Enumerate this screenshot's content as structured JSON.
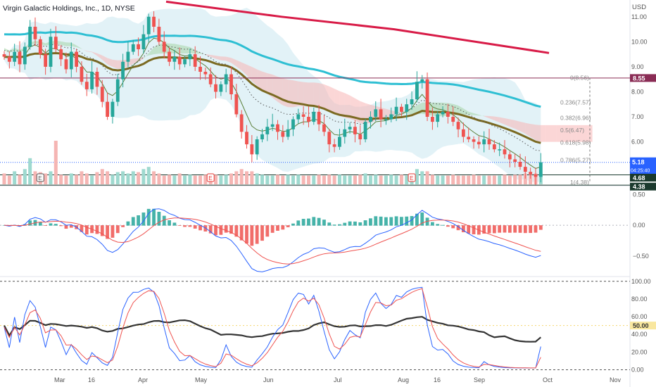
{
  "header": {
    "title": "Virgin Galactic Holdings, Inc., 1D, NYSE",
    "currency": "USD"
  },
  "colors": {
    "up": "#26a69a",
    "down": "#ef5350",
    "cloud_bear": "#f7b4b4",
    "cloud_bull": "#a5d6a7",
    "bb_fill": "#dbeff5",
    "ma_fast": "#2ebfd3",
    "ma_mid": "#7b6a22",
    "ma_slow": "#d81b47",
    "macd": "#2962ff",
    "signal": "#ef5350",
    "rsi": "#333333",
    "fib": "#888888",
    "hline": "#8a2c55"
  },
  "chart_data": [
    {
      "type": "candlestick",
      "panel": "price",
      "price_axis": {
        "ticks": [
          11.0,
          10.0,
          9.0,
          8.0,
          7.0,
          6.0,
          5.0
        ],
        "ylim": [
          4.3,
          11.5
        ]
      },
      "time_axis": {
        "labels": [
          "Mar",
          "16",
          "Apr",
          "May",
          "Jun",
          "Jul",
          "Aug",
          "16",
          "Sep",
          "Oct",
          "Nov"
        ]
      },
      "labels": {
        "horizontal_line": {
          "value": 8.55,
          "label": "8.55"
        },
        "last_price": {
          "value": 5.18,
          "label": "5.18",
          "countdown": "04:25:40"
        },
        "level_a": {
          "value": 4.68,
          "label": "4.68"
        },
        "level_b": {
          "value": 4.38,
          "label": "4.38"
        }
      },
      "fibonacci": [
        {
          "ratio": "0",
          "value": 8.56,
          "label": "0(8.56)"
        },
        {
          "ratio": "0.236",
          "value": 7.57,
          "label": "0.236(7.57)"
        },
        {
          "ratio": "0.382",
          "value": 6.96,
          "label": "0.382(6.96)"
        },
        {
          "ratio": "0.5",
          "value": 6.47,
          "label": "0.5(6.47)"
        },
        {
          "ratio": "0.618",
          "value": 5.98,
          "label": "0.618(5.98)"
        },
        {
          "ratio": "0.786",
          "value": 5.27,
          "label": "0.786(5.27)"
        },
        {
          "ratio": "1",
          "value": 4.38,
          "label": "1(4.38)"
        }
      ],
      "earnings_markers": [
        {
          "label": "E",
          "type": "earnings-past"
        },
        {
          "label": "E",
          "type": "earnings-past"
        },
        {
          "label": "E",
          "type": "earnings-past"
        }
      ],
      "close_series": [
        9.4,
        9.2,
        9.6,
        9.1,
        9.8,
        10.6,
        10.1,
        9.5,
        9.0,
        10.2,
        9.7,
        9.3,
        8.9,
        9.6,
        9.0,
        8.4,
        8.1,
        8.8,
        8.2,
        7.6,
        7.0,
        7.6,
        8.5,
        9.2,
        9.6,
        9.9,
        9.7,
        10.3,
        11.0,
        10.6,
        10.0,
        9.6,
        9.2,
        9.4,
        9.1,
        9.3,
        9.5,
        9.0,
        8.8,
        8.7,
        8.3,
        8.0,
        8.3,
        8.7,
        7.9,
        7.1,
        6.4,
        5.9,
        5.5,
        6.1,
        6.3,
        6.6,
        6.7,
        6.4,
        6.2,
        6.5,
        6.9,
        7.1,
        7.0,
        6.8,
        7.2,
        6.7,
        6.4,
        5.9,
        5.8,
        6.2,
        6.5,
        6.6,
        6.3,
        6.1,
        6.8,
        7.0,
        7.3,
        6.9,
        6.9,
        7.1,
        7.4,
        7.2,
        7.5,
        7.7,
        8.4,
        8.5,
        7.0,
        6.8,
        7.1,
        7.2,
        7.0,
        6.8,
        6.5,
        6.2,
        6.1,
        6.0,
        5.9,
        6.1,
        5.9,
        5.7,
        5.7,
        5.5,
        5.3,
        5.2,
        5.0,
        4.8,
        4.7,
        4.6,
        5.18
      ],
      "volume_series": [
        0.25,
        0.2,
        0.3,
        0.22,
        0.35,
        0.6,
        0.3,
        0.28,
        0.25,
        0.3,
        1.0,
        0.22,
        0.2,
        0.25,
        0.22,
        0.3,
        0.25,
        0.2,
        0.28,
        0.35,
        0.3,
        0.22,
        0.28,
        0.3,
        0.25,
        0.3,
        0.28,
        0.35,
        0.4,
        0.3,
        0.25,
        0.2,
        0.22,
        0.2,
        0.25,
        0.2,
        0.22,
        0.2,
        0.2,
        0.22,
        0.25,
        0.22,
        0.2,
        0.22,
        0.25,
        0.3,
        0.35,
        0.3,
        0.3,
        0.25,
        0.22,
        0.2,
        0.2,
        0.22,
        0.2,
        0.22,
        0.2,
        0.22,
        0.2,
        0.2,
        0.2,
        0.22,
        0.2,
        0.22,
        0.2,
        0.22,
        0.2,
        0.2,
        0.2,
        0.22,
        0.25,
        0.2,
        0.22,
        0.2,
        0.2,
        0.22,
        0.2,
        0.22,
        0.2,
        0.22,
        0.35,
        0.3,
        0.3,
        0.22,
        0.2,
        0.2,
        0.2,
        0.22,
        0.2,
        0.2,
        0.2,
        0.22,
        0.2,
        0.2,
        0.2,
        0.2,
        0.2,
        0.22,
        0.2,
        0.22,
        0.22,
        0.25,
        0.22,
        0.25,
        0.25
      ]
    },
    {
      "type": "macd",
      "panel": "macd",
      "axis_ticks": [
        0.5,
        0.0,
        -0.5
      ],
      "axis_labels": [
        "0.50",
        "0.00",
        "−0.50"
      ],
      "ylim": [
        -0.8,
        0.62
      ]
    },
    {
      "type": "rsi_stochastic",
      "panel": "oscillators",
      "axis_ticks": [
        100,
        80,
        60,
        40,
        20,
        0
      ],
      "axis_labels": [
        "100.00",
        "80.00",
        "60.00",
        "40.00",
        "20.00",
        "0.00"
      ],
      "badge": {
        "value": 50.0,
        "label": "50.00"
      },
      "ylim": [
        -2,
        103
      ]
    }
  ]
}
